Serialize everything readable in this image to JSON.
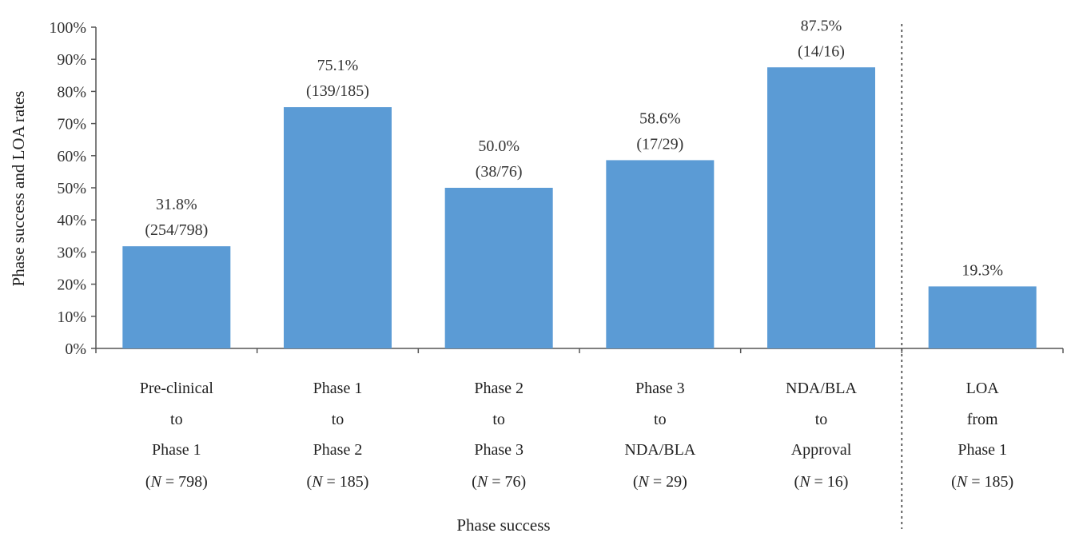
{
  "chart_data": {
    "type": "bar",
    "xlabel": "Phase success",
    "ylabel": "Phase success and LOA rates",
    "ylim": [
      0,
      100
    ],
    "y_ticks": [
      "0%",
      "10%",
      "20%",
      "30%",
      "40%",
      "50%",
      "60%",
      "70%",
      "80%",
      "90%",
      "100%"
    ],
    "grid": false,
    "legend": "none",
    "bar_color": "#5b9bd5",
    "categories": [
      {
        "lines": [
          "Pre-clinical",
          "to",
          "Phase 1"
        ],
        "n": "798",
        "value": 31.8,
        "label_pct": "31.8%",
        "label_frac": "(254/798)"
      },
      {
        "lines": [
          "Phase 1",
          "to",
          "Phase 2"
        ],
        "n": "185",
        "value": 75.1,
        "label_pct": "75.1%",
        "label_frac": "(139/185)"
      },
      {
        "lines": [
          "Phase 2",
          "to",
          "Phase 3"
        ],
        "n": "76",
        "value": 50.0,
        "label_pct": "50.0%",
        "label_frac": "(38/76)"
      },
      {
        "lines": [
          "Phase 3",
          "to",
          "NDA/BLA"
        ],
        "n": "29",
        "value": 58.6,
        "label_pct": "58.6%",
        "label_frac": "(17/29)"
      },
      {
        "lines": [
          "NDA/BLA",
          "to",
          "Approval"
        ],
        "n": "16",
        "value": 87.5,
        "label_pct": "87.5%",
        "label_frac": "(14/16)"
      },
      {
        "lines": [
          "LOA",
          "from",
          "Phase 1"
        ],
        "n": "185",
        "value": 19.3,
        "label_pct": "19.3%",
        "label_frac": ""
      }
    ],
    "separator_after_index": 4
  }
}
